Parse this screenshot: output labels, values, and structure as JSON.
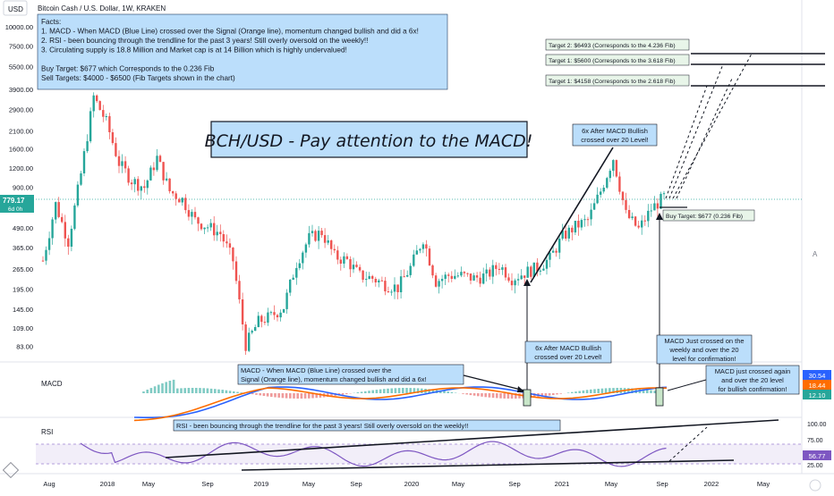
{
  "header": {
    "symbol_title": "Bitcoin Cash / U.S. Dollar, 1W, KRAKEN",
    "currency_badge": "USD",
    "price_tag": "779.17",
    "price_tag_sub": "6d 0h"
  },
  "facts_box": {
    "lines": [
      "Facts:",
      "1. MACD - When MACD (Blue Line) crossed over the Signal (Orange line), momentum changed bullish and did a 6x!",
      "2. RSI - been bouncing through the trendline for the past 3 years! Still overly oversold on the weekly!!",
      "3. Circulating supply is 18.8 Million and Market cap is at 14 Billion which is highly undervalued!",
      "",
      "Buy Target: $677 which Corresponds to the 0.236 Fib",
      "Sell Targets: $4000 - $6500 (Fib Targets shown in the chart)"
    ]
  },
  "headline": "BCH/USD - Pay attention to the MACD!",
  "annotations": {
    "six_x_top": [
      "6x After MACD Bullish",
      "crossed over 20 Level!"
    ],
    "six_x_bottom": [
      "6x After MACD Bullish",
      "crossed over 20 Level!"
    ],
    "macd_just_crossed": [
      "MACD Just crossed on the",
      "weekly and over the 20",
      "level for confirmation!"
    ],
    "macd_right": [
      "MACD just crossed again",
      "and over the 20 level",
      "for bullish confirmation!"
    ],
    "macd_note": [
      "MACD - When MACD (Blue Line) crossed over the",
      "Signal (Orange line), momentum changed bullish and did a 6x!"
    ],
    "rsi_note": "RSI - been bouncing through the trendline for the past 3 years! Still overly oversold on the weekly!!",
    "buy_target": "Buy Target: $677 (0.236 Fib)",
    "target2": "Target 2: $6493 (Corresponds to the 4.236 Fib)",
    "target1a": "Target 1: $5600 (Corresponds to the 3.618 Fib)",
    "target1b": "Target 1: $4158 (Corresponds to the 2.618 Fib)"
  },
  "panes": {
    "macd_label": "MACD",
    "rsi_label": "RSI",
    "macd_values": [
      "30.54",
      "18.44",
      "12.10"
    ],
    "rsi_ticks": [
      "100.00",
      "75.00",
      "56.77",
      "25.00"
    ],
    "corner_a": "A"
  },
  "colors": {
    "up": "#26a69a",
    "down": "#ef5350",
    "macd_line": "#2962ff",
    "signal_line": "#ff6d00",
    "rsi_line": "#7e57c2",
    "note_box": "#bbdefb",
    "target_box": "#e8f5e9"
  },
  "chart_data": {
    "type": "candlestick",
    "title": "Bitcoin Cash / U.S. Dollar, 1W, KRAKEN",
    "y_scale": "log",
    "y_ticks": [
      "10000.00",
      "7500.00",
      "5500.00",
      "3900.00",
      "2900.00",
      "2100.00",
      "1600.00",
      "1200.00",
      "900.00",
      "490.00",
      "365.00",
      "265.00",
      "195.00",
      "145.00",
      "109.00",
      "83.00"
    ],
    "x_ticks": [
      "Aug",
      "2018",
      "May",
      "Sep",
      "2019",
      "May",
      "Sep",
      "2020",
      "May",
      "Sep",
      "2021",
      "May",
      "Sep",
      "2022",
      "May"
    ],
    "last_price": 779.17,
    "price_path": [
      [
        "2017-08",
        300
      ],
      [
        "2017-09",
        700
      ],
      [
        "2017-10",
        400
      ],
      [
        "2017-11",
        1100
      ],
      [
        "2017-12",
        3500
      ],
      [
        "2018-01",
        2400
      ],
      [
        "2018-02",
        1300
      ],
      [
        "2018-03",
        1000
      ],
      [
        "2018-04",
        900
      ],
      [
        "2018-05",
        1400
      ],
      [
        "2018-06",
        850
      ],
      [
        "2018-07",
        750
      ],
      [
        "2018-08",
        550
      ],
      [
        "2018-09",
        500
      ],
      [
        "2018-10",
        450
      ],
      [
        "2018-11",
        300
      ],
      [
        "2018-12",
        85
      ],
      [
        "2019-01",
        120
      ],
      [
        "2019-02",
        130
      ],
      [
        "2019-03",
        150
      ],
      [
        "2019-04",
        290
      ],
      [
        "2019-05",
        420
      ],
      [
        "2019-06",
        460
      ],
      [
        "2019-07",
        320
      ],
      [
        "2019-08",
        300
      ],
      [
        "2019-09",
        240
      ],
      [
        "2019-10",
        230
      ],
      [
        "2019-11",
        210
      ],
      [
        "2019-12",
        200
      ],
      [
        "2020-01",
        270
      ],
      [
        "2020-02",
        420
      ],
      [
        "2020-03",
        220
      ],
      [
        "2020-04",
        240
      ],
      [
        "2020-05",
        240
      ],
      [
        "2020-06",
        230
      ],
      [
        "2020-07",
        240
      ],
      [
        "2020-08",
        280
      ],
      [
        "2020-09",
        230
      ],
      [
        "2020-10",
        250
      ],
      [
        "2020-11",
        270
      ],
      [
        "2020-12",
        310
      ],
      [
        "2021-01",
        430
      ],
      [
        "2021-02",
        500
      ],
      [
        "2021-03",
        550
      ],
      [
        "2021-04",
        850
      ],
      [
        "2021-05",
        1400
      ],
      [
        "2021-06",
        600
      ],
      [
        "2021-07",
        480
      ],
      [
        "2021-08",
        650
      ],
      [
        "2021-09",
        779.17
      ]
    ],
    "annotations": [
      "Buy Target: $677 (0.236 Fib)",
      "Target 1: $4158 (Corresponds to the 2.618 Fib)",
      "Target 1: $5600 (Corresponds to the 3.618 Fib)",
      "Target 2: $6493 (Corresponds to the 4.236 Fib)"
    ],
    "sub_panes": [
      {
        "name": "MACD",
        "current": [
          30.54,
          18.44,
          12.1
        ]
      },
      {
        "name": "RSI",
        "current": 56.77,
        "ticks": [
          100,
          75,
          25
        ]
      }
    ]
  }
}
